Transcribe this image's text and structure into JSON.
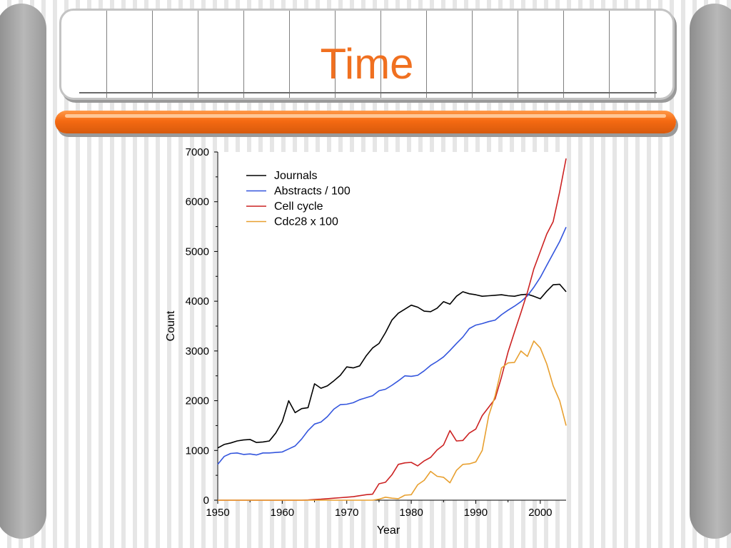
{
  "slide": {
    "title": "Time",
    "colors": {
      "title": "#f07020",
      "bar": "#f56a12"
    }
  },
  "chart_data": {
    "type": "line",
    "xlabel": "Year",
    "ylabel": "Count",
    "xlim": [
      1950,
      2004
    ],
    "ylim": [
      0,
      7000
    ],
    "x_ticks": [
      1950,
      1960,
      1970,
      1980,
      1990,
      2000
    ],
    "y_ticks": [
      0,
      1000,
      2000,
      3000,
      4000,
      5000,
      6000,
      7000
    ],
    "grid": false,
    "legend_position": "top-left",
    "x": [
      1950,
      1951,
      1952,
      1953,
      1954,
      1955,
      1956,
      1957,
      1958,
      1959,
      1960,
      1961,
      1962,
      1963,
      1964,
      1965,
      1966,
      1967,
      1968,
      1969,
      1970,
      1971,
      1972,
      1973,
      1974,
      1975,
      1976,
      1977,
      1978,
      1979,
      1980,
      1981,
      1982,
      1983,
      1984,
      1985,
      1986,
      1987,
      1988,
      1989,
      1990,
      1991,
      1992,
      1993,
      1994,
      1995,
      1996,
      1997,
      1998,
      1999,
      2000,
      2001,
      2002,
      2003,
      2004
    ],
    "series": [
      {
        "name": "Journals",
        "color": "#000000",
        "values": [
          1050,
          1120,
          1150,
          1190,
          1210,
          1220,
          1160,
          1170,
          1190,
          1350,
          1580,
          2000,
          1760,
          1840,
          1860,
          2340,
          2250,
          2300,
          2400,
          2510,
          2680,
          2660,
          2700,
          2900,
          3060,
          3150,
          3370,
          3620,
          3760,
          3840,
          3920,
          3880,
          3800,
          3790,
          3860,
          3990,
          3940,
          4100,
          4190,
          4150,
          4130,
          4100,
          4110,
          4120,
          4130,
          4110,
          4100,
          4130,
          4140,
          4100,
          4050,
          4200,
          4330,
          4340,
          4190
        ]
      },
      {
        "name": "Abstracts / 100",
        "color": "#3355dd",
        "values": [
          720,
          880,
          940,
          950,
          920,
          930,
          910,
          950,
          950,
          960,
          970,
          1030,
          1090,
          1230,
          1400,
          1530,
          1570,
          1680,
          1830,
          1920,
          1930,
          1960,
          2020,
          2060,
          2100,
          2200,
          2230,
          2310,
          2400,
          2500,
          2490,
          2510,
          2600,
          2710,
          2790,
          2880,
          3010,
          3150,
          3280,
          3450,
          3520,
          3550,
          3590,
          3620,
          3730,
          3820,
          3900,
          3990,
          4110,
          4280,
          4480,
          4720,
          4960,
          5200,
          5490
        ]
      },
      {
        "name": "Cell cycle",
        "color": "#cc2222",
        "values": [
          0,
          0,
          0,
          0,
          0,
          0,
          0,
          0,
          0,
          0,
          0,
          0,
          0,
          0,
          5,
          15,
          20,
          30,
          40,
          50,
          60,
          70,
          90,
          110,
          120,
          330,
          360,
          510,
          720,
          750,
          760,
          690,
          790,
          860,
          1010,
          1110,
          1400,
          1190,
          1200,
          1350,
          1430,
          1700,
          1870,
          2040,
          2480,
          2980,
          3380,
          3770,
          4180,
          4650,
          5000,
          5350,
          5600,
          6200,
          6870
        ]
      },
      {
        "name": "Cdc28 x 100",
        "color": "#e8a030",
        "values": [
          0,
          0,
          0,
          0,
          0,
          0,
          0,
          0,
          0,
          0,
          0,
          0,
          0,
          0,
          0,
          0,
          0,
          0,
          0,
          0,
          0,
          0,
          0,
          0,
          0,
          20,
          60,
          40,
          30,
          100,
          110,
          310,
          400,
          580,
          480,
          460,
          350,
          600,
          720,
          730,
          770,
          1000,
          1700,
          2100,
          2660,
          2760,
          2770,
          3000,
          2890,
          3200,
          3060,
          2740,
          2300,
          2000,
          1500
        ]
      }
    ]
  }
}
